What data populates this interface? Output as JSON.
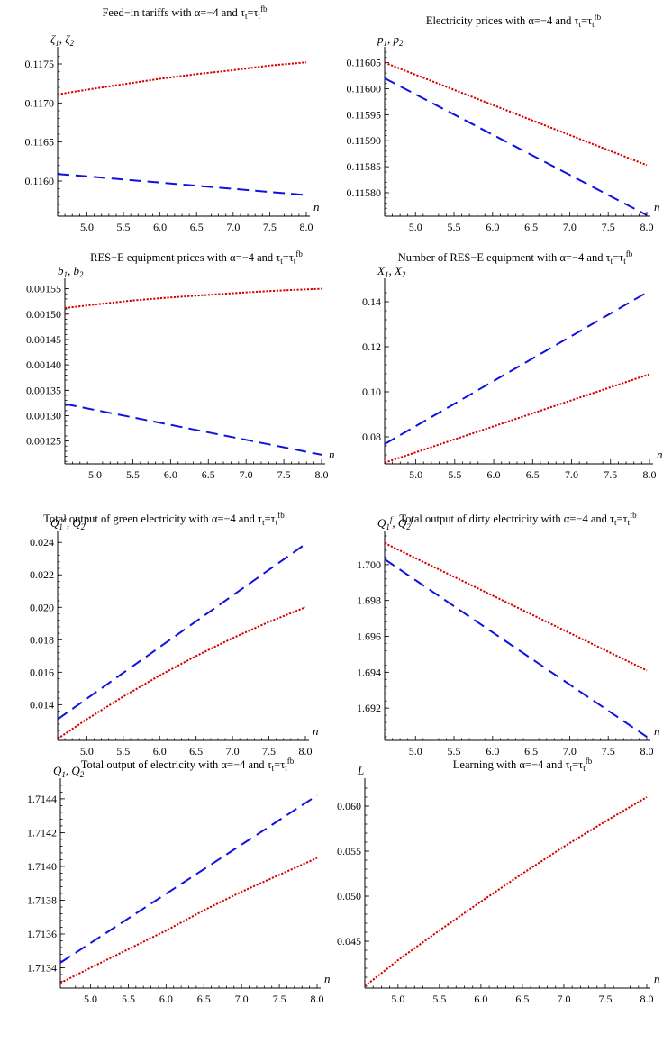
{
  "chart_data": [
    {
      "type": "line",
      "title": "Feed−in tariffs with α=−4 and τ_t=τ_t^fb",
      "ylabel": "ζ1, ζ2",
      "xlabel": "n",
      "xlim": [
        4.6,
        8.0
      ],
      "ylim": [
        0.11555,
        0.11765
      ],
      "xticks": [
        "5.0",
        "5.5",
        "6.0",
        "6.5",
        "7.0",
        "7.5",
        "8.0"
      ],
      "yticks": [
        "0.1160",
        "0.1165",
        "0.1170",
        "0.1175"
      ],
      "series": [
        {
          "color": "#d40000",
          "dash": "dotted",
          "x": [
            4.6,
            5.0,
            5.5,
            6.0,
            6.5,
            7.0,
            7.5,
            8.0
          ],
          "values": [
            0.11711,
            0.11717,
            0.11724,
            0.11731,
            0.11737,
            0.11742,
            0.11748,
            0.11752
          ]
        },
        {
          "color": "#1010e0",
          "dash": "dashed",
          "x": [
            4.6,
            5.0,
            5.5,
            6.0,
            6.5,
            7.0,
            7.5,
            8.0
          ],
          "values": [
            0.11609,
            0.11606,
            0.11602,
            0.11598,
            0.11594,
            0.1159,
            0.11586,
            0.11582
          ]
        }
      ]
    },
    {
      "type": "line",
      "title": "Electricity prices with α=−4 and τ_t=τ_t^fb",
      "ylabel": "p1, p2",
      "xlabel": "n",
      "xlim": [
        4.6,
        8.0
      ],
      "ylim": [
        0.115755,
        0.11607
      ],
      "xticks": [
        "5.0",
        "5.5",
        "6.0",
        "6.5",
        "7.0",
        "7.5",
        "8.0"
      ],
      "yticks": [
        "0.11580",
        "0.11585",
        "0.11590",
        "0.11595",
        "0.11600",
        "0.11605"
      ],
      "series": [
        {
          "color": "#d40000",
          "dash": "dotted",
          "x": [
            4.6,
            8.0
          ],
          "values": [
            0.11605,
            0.115853
          ]
        },
        {
          "color": "#1010e0",
          "dash": "dashed",
          "x": [
            4.6,
            8.0
          ],
          "values": [
            0.11602,
            0.115757
          ]
        }
      ]
    },
    {
      "type": "line",
      "title": "RES−E equipment prices with α=−4 and τ_t=τ_t^fb",
      "ylabel": "b1, b2",
      "xlabel": "n",
      "xlim": [
        4.6,
        8.0
      ],
      "ylim": [
        0.001205,
        0.00156
      ],
      "xticks": [
        "5.0",
        "5.5",
        "6.0",
        "6.5",
        "7.0",
        "7.5",
        "8.0"
      ],
      "yticks": [
        "0.00125",
        "0.00130",
        "0.00135",
        "0.00140",
        "0.00145",
        "0.00150",
        "0.00155"
      ],
      "series": [
        {
          "color": "#d40000",
          "dash": "dotted",
          "x": [
            4.6,
            5.0,
            5.5,
            6.0,
            6.5,
            7.0,
            7.5,
            8.0
          ],
          "values": [
            0.001512,
            0.001519,
            0.001527,
            0.001533,
            0.001538,
            0.001543,
            0.001547,
            0.00155
          ]
        },
        {
          "color": "#1010e0",
          "dash": "dashed",
          "x": [
            4.6,
            8.0
          ],
          "values": [
            0.001323,
            0.001223
          ]
        }
      ]
    },
    {
      "type": "line",
      "title": "Number of RES−E equipment with α=−4 and τ_t=τ_t^fb",
      "ylabel": "X1, X2",
      "xlabel": "n",
      "xlim": [
        4.6,
        8.0
      ],
      "ylim": [
        0.068,
        0.148
      ],
      "xticks": [
        "5.0",
        "5.5",
        "6.0",
        "6.5",
        "7.0",
        "7.5",
        "8.0"
      ],
      "yticks": [
        "0.08",
        "0.10",
        "0.12",
        "0.14"
      ],
      "series": [
        {
          "color": "#d40000",
          "dash": "dotted",
          "x": [
            4.6,
            8.0
          ],
          "values": [
            0.0685,
            0.1078
          ]
        },
        {
          "color": "#1010e0",
          "dash": "dashed",
          "x": [
            4.6,
            8.0
          ],
          "values": [
            0.0768,
            0.1448
          ]
        }
      ]
    },
    {
      "type": "line",
      "title": "Total output of green electricity with α=−4 and τ_t=τ_t^fb",
      "ylabel": "Q1^c, Q2^c",
      "xlabel": "n",
      "xlim": [
        4.6,
        8.0
      ],
      "ylim": [
        0.0118,
        0.0244
      ],
      "xticks": [
        "5.0",
        "5.5",
        "6.0",
        "6.5",
        "7.0",
        "7.5",
        "8.0"
      ],
      "yticks": [
        "0.014",
        "0.016",
        "0.018",
        "0.020",
        "0.022",
        "0.024"
      ],
      "series": [
        {
          "color": "#d40000",
          "dash": "dotted",
          "x": [
            4.6,
            5.0,
            5.5,
            6.0,
            6.5,
            7.0,
            7.5,
            8.0
          ],
          "values": [
            0.0119,
            0.0131,
            0.0145,
            0.0158,
            0.017,
            0.0181,
            0.0191,
            0.02
          ]
        },
        {
          "color": "#1010e0",
          "dash": "dashed",
          "x": [
            4.6,
            8.0
          ],
          "values": [
            0.0131,
            0.0239
          ]
        }
      ]
    },
    {
      "type": "line",
      "title": "Total output of dirty electricity with α=−4 and τ_t=τ_t^fb",
      "ylabel": "Q1^f, Q2^f",
      "xlabel": "n",
      "xlim": [
        4.6,
        8.0
      ],
      "ylim": [
        1.6902,
        1.7016
      ],
      "xticks": [
        "5.0",
        "5.5",
        "6.0",
        "6.5",
        "7.0",
        "7.5",
        "8.0"
      ],
      "yticks": [
        "1.692",
        "1.694",
        "1.696",
        "1.698",
        "1.700"
      ],
      "series": [
        {
          "color": "#d40000",
          "dash": "dotted",
          "x": [
            4.6,
            8.0
          ],
          "values": [
            1.7012,
            1.6941
          ]
        },
        {
          "color": "#1010e0",
          "dash": "dashed",
          "x": [
            4.6,
            8.0
          ],
          "values": [
            1.7003,
            1.6904
          ]
        }
      ]
    },
    {
      "type": "line",
      "title": "Total output of electricity with α=−4 and τ_t=τ_t^fb",
      "ylabel": "Q1, Q2",
      "xlabel": "n",
      "xlim": [
        4.6,
        8.0
      ],
      "ylim": [
        1.71328,
        1.71449
      ],
      "xticks": [
        "5.0",
        "5.5",
        "6.0",
        "6.5",
        "7.0",
        "7.5",
        "8.0"
      ],
      "yticks": [
        "1.7134",
        "1.7136",
        "1.7138",
        "1.7140",
        "1.7142",
        "1.7144"
      ],
      "series": [
        {
          "color": "#d40000",
          "dash": "dotted",
          "x": [
            4.6,
            5.0,
            5.5,
            6.0,
            6.5,
            7.0,
            7.5,
            8.0
          ],
          "values": [
            1.71331,
            1.7134,
            1.71351,
            1.71362,
            1.71374,
            1.71385,
            1.71395,
            1.71405
          ]
        },
        {
          "color": "#1010e0",
          "dash": "dashed",
          "x": [
            4.6,
            8.0
          ],
          "values": [
            1.71343,
            1.71442
          ]
        }
      ]
    },
    {
      "type": "line",
      "title": "Learning with α=−4 and τ_t=τ_t^fb",
      "ylabel": "L",
      "xlabel": "n",
      "xlim": [
        4.6,
        8.0
      ],
      "ylim": [
        0.0398,
        0.0625
      ],
      "xticks": [
        "5.0",
        "5.5",
        "6.0",
        "6.5",
        "7.0",
        "7.5",
        "8.0"
      ],
      "yticks": [
        "0.045",
        "0.050",
        "0.055",
        "0.060"
      ],
      "series": [
        {
          "color": "#d40000",
          "dash": "dotted",
          "x": [
            4.6,
            5.0,
            5.5,
            6.0,
            6.5,
            7.0,
            7.5,
            8.0
          ],
          "values": [
            0.04,
            0.0429,
            0.0462,
            0.0494,
            0.0525,
            0.0555,
            0.0583,
            0.061
          ]
        }
      ]
    }
  ]
}
